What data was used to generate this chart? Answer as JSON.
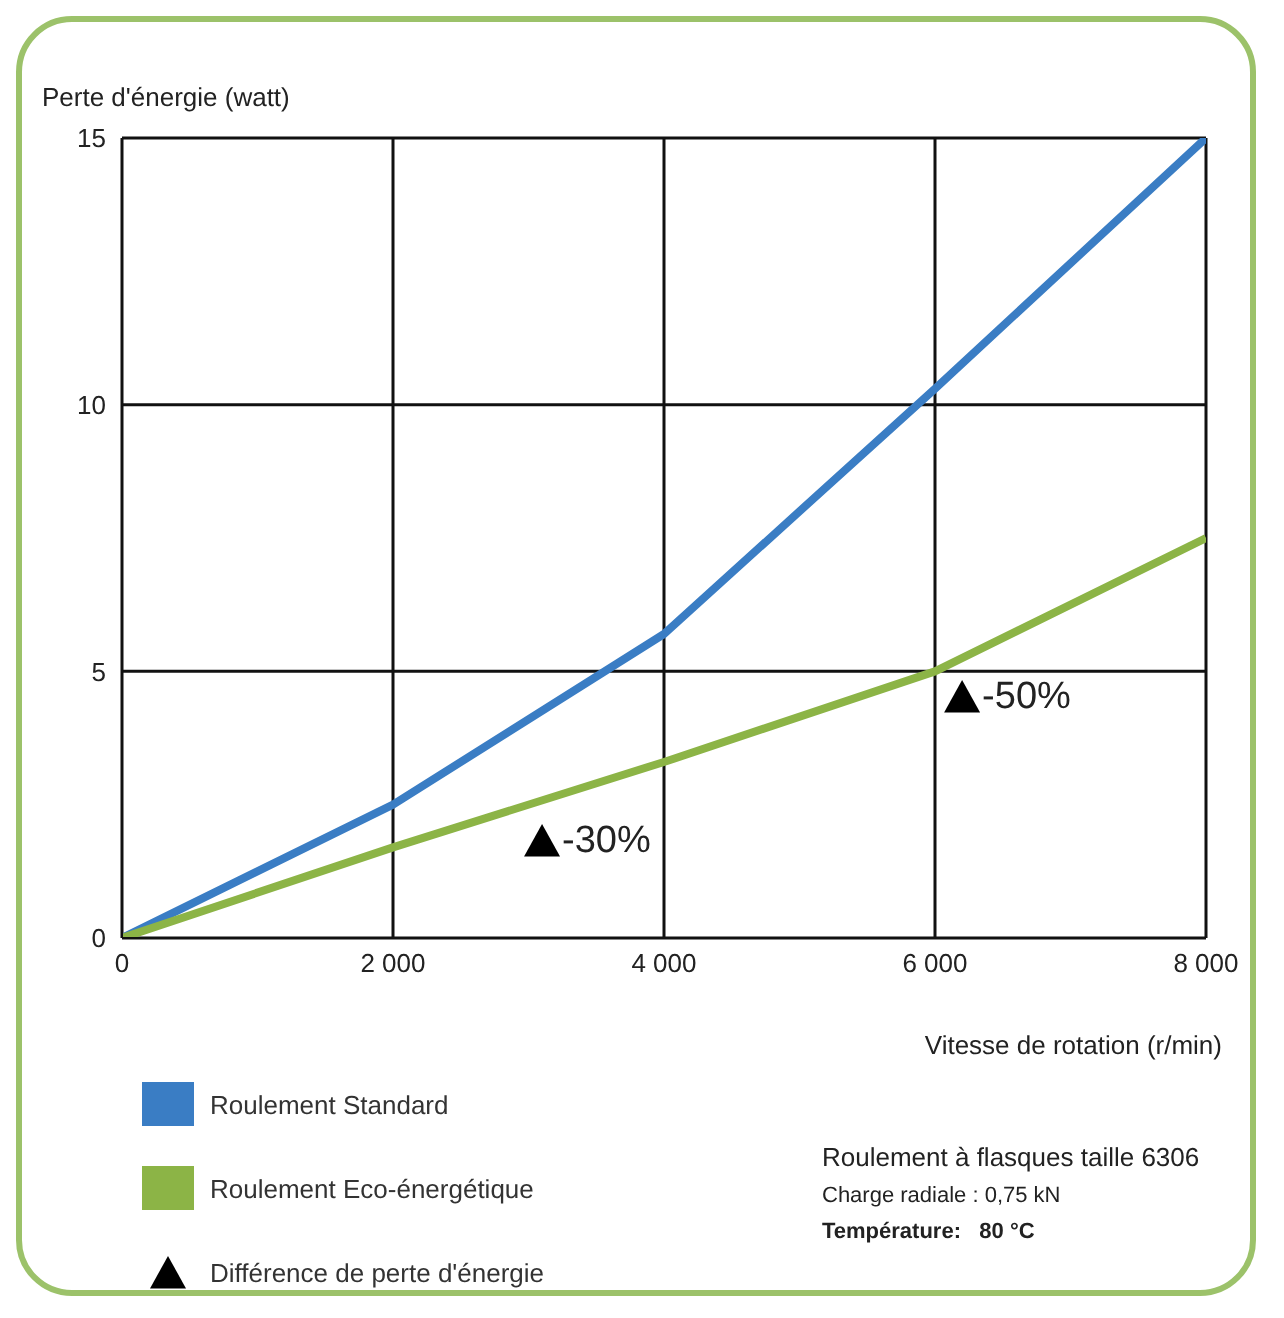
{
  "chart_data": {
    "type": "line",
    "ylabel": "Perte d'énergie (watt)",
    "xlabel": "Vitesse de rotation (r/min)",
    "xlim": [
      0,
      8000
    ],
    "xticks": [
      0,
      {
        "value": 2000,
        "label": "2 000"
      },
      {
        "value": 4000,
        "label": "4 000"
      },
      {
        "value": 6000,
        "label": "6 000"
      },
      {
        "value": 8000,
        "label": "8 000"
      }
    ],
    "ylim": [
      0,
      15
    ],
    "yticks": [
      0,
      5,
      10,
      15
    ],
    "grid": true,
    "legend": "bottom left",
    "line_style": "solid",
    "series": [
      {
        "name": "Roulement Standard",
        "color": "#3a7dc4",
        "x": [
          0,
          2000,
          4000,
          6000,
          8000
        ],
        "values": [
          0,
          2.5,
          5.7,
          10.3,
          15
        ],
        "marker": "none"
      },
      {
        "name": "Roulement Eco-énergétique",
        "color": "#8cb446",
        "x": [
          0,
          2000,
          4000,
          6000,
          8000
        ],
        "values": [
          0,
          1.7,
          3.3,
          5.0,
          7.5
        ],
        "marker": "none"
      },
      {
        "name": "Différence de perte d'énergie",
        "type": "scatter",
        "color": "#000000",
        "x": [
          3100,
          6200
        ],
        "values": [
          1.8,
          4.5
        ],
        "marker": "triangle"
      }
    ],
    "annotations": [
      {
        "text": "-30%",
        "x": 3100,
        "y": 1.8
      },
      {
        "text": "-50%",
        "x": 6200,
        "y": 4.5
      },
      "Roulement à flasques taille 6306",
      "Charge radiale : 0,75 kN",
      "Température:   80 °C"
    ]
  }
}
